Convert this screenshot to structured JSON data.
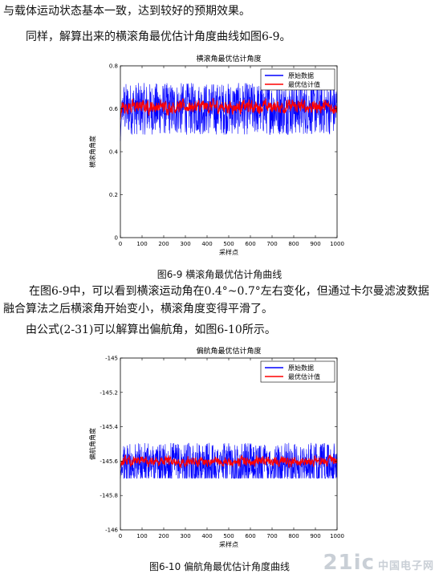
{
  "document": {
    "line1": "与载体运动状态基本一致，达到较好的预期效果。",
    "line2": "同样，解算出来的横滚角最优估计角度曲线如图6-9。",
    "para1": "在图6-9中，可以看到横滚运动角在0.4°~0.7°左右变化，但通过卡尔曼滤波数据融合算法之后横滚角开始变小，横滚角度变得平滑了。",
    "para2": "由公式(2-31)可以解算出偏航角，如图6-10所示。",
    "caption1": "图6-9  横滚角最优估计角曲线",
    "caption2": "图6-10  偏航角最优估计角度曲线"
  },
  "watermark": {
    "logo": "21ic",
    "text": "中国电子网"
  },
  "colors": {
    "raw": "#0000ff",
    "filtered": "#ff0000"
  },
  "chart_data": [
    {
      "type": "line",
      "title": "横滚角最优估计角度",
      "xlabel": "采样点",
      "ylabel": "横滚角角度",
      "xlim": [
        0,
        1000
      ],
      "ylim": [
        0,
        0.8
      ],
      "xticks": [
        "0",
        "100",
        "200",
        "300",
        "400",
        "500",
        "600",
        "700",
        "800",
        "900",
        "1000"
      ],
      "yticks": [
        "0",
        "0.2",
        "0.4",
        "0.6",
        "0.8"
      ],
      "legend_position": "top-right",
      "series": [
        {
          "name": "原始数据",
          "color": "#0000ff",
          "mean": 0.6,
          "range": [
            0.45,
            0.72
          ]
        },
        {
          "name": "最优估计值",
          "color": "#ff0000",
          "mean": 0.61,
          "range": [
            0.55,
            0.66
          ]
        }
      ]
    },
    {
      "type": "line",
      "title": "偏航角最优估计角度",
      "xlabel": "采样点",
      "ylabel": "偏航角角度",
      "xlim": [
        0,
        1000
      ],
      "ylim": [
        -146,
        -145
      ],
      "xticks": [
        "0",
        "100",
        "200",
        "300",
        "400",
        "500",
        "600",
        "700",
        "800",
        "900",
        "1000"
      ],
      "yticks": [
        "-145",
        "-145.2",
        "-145.4",
        "-145.6",
        "-145.8",
        "-146"
      ],
      "legend_position": "top-right",
      "series": [
        {
          "name": "原始数据",
          "color": "#0000ff",
          "mean": -145.62,
          "range": [
            -145.7,
            -145.42
          ]
        },
        {
          "name": "最优估计值",
          "color": "#ff0000",
          "mean": -145.6,
          "range": [
            -145.64,
            -145.54
          ]
        }
      ]
    }
  ]
}
